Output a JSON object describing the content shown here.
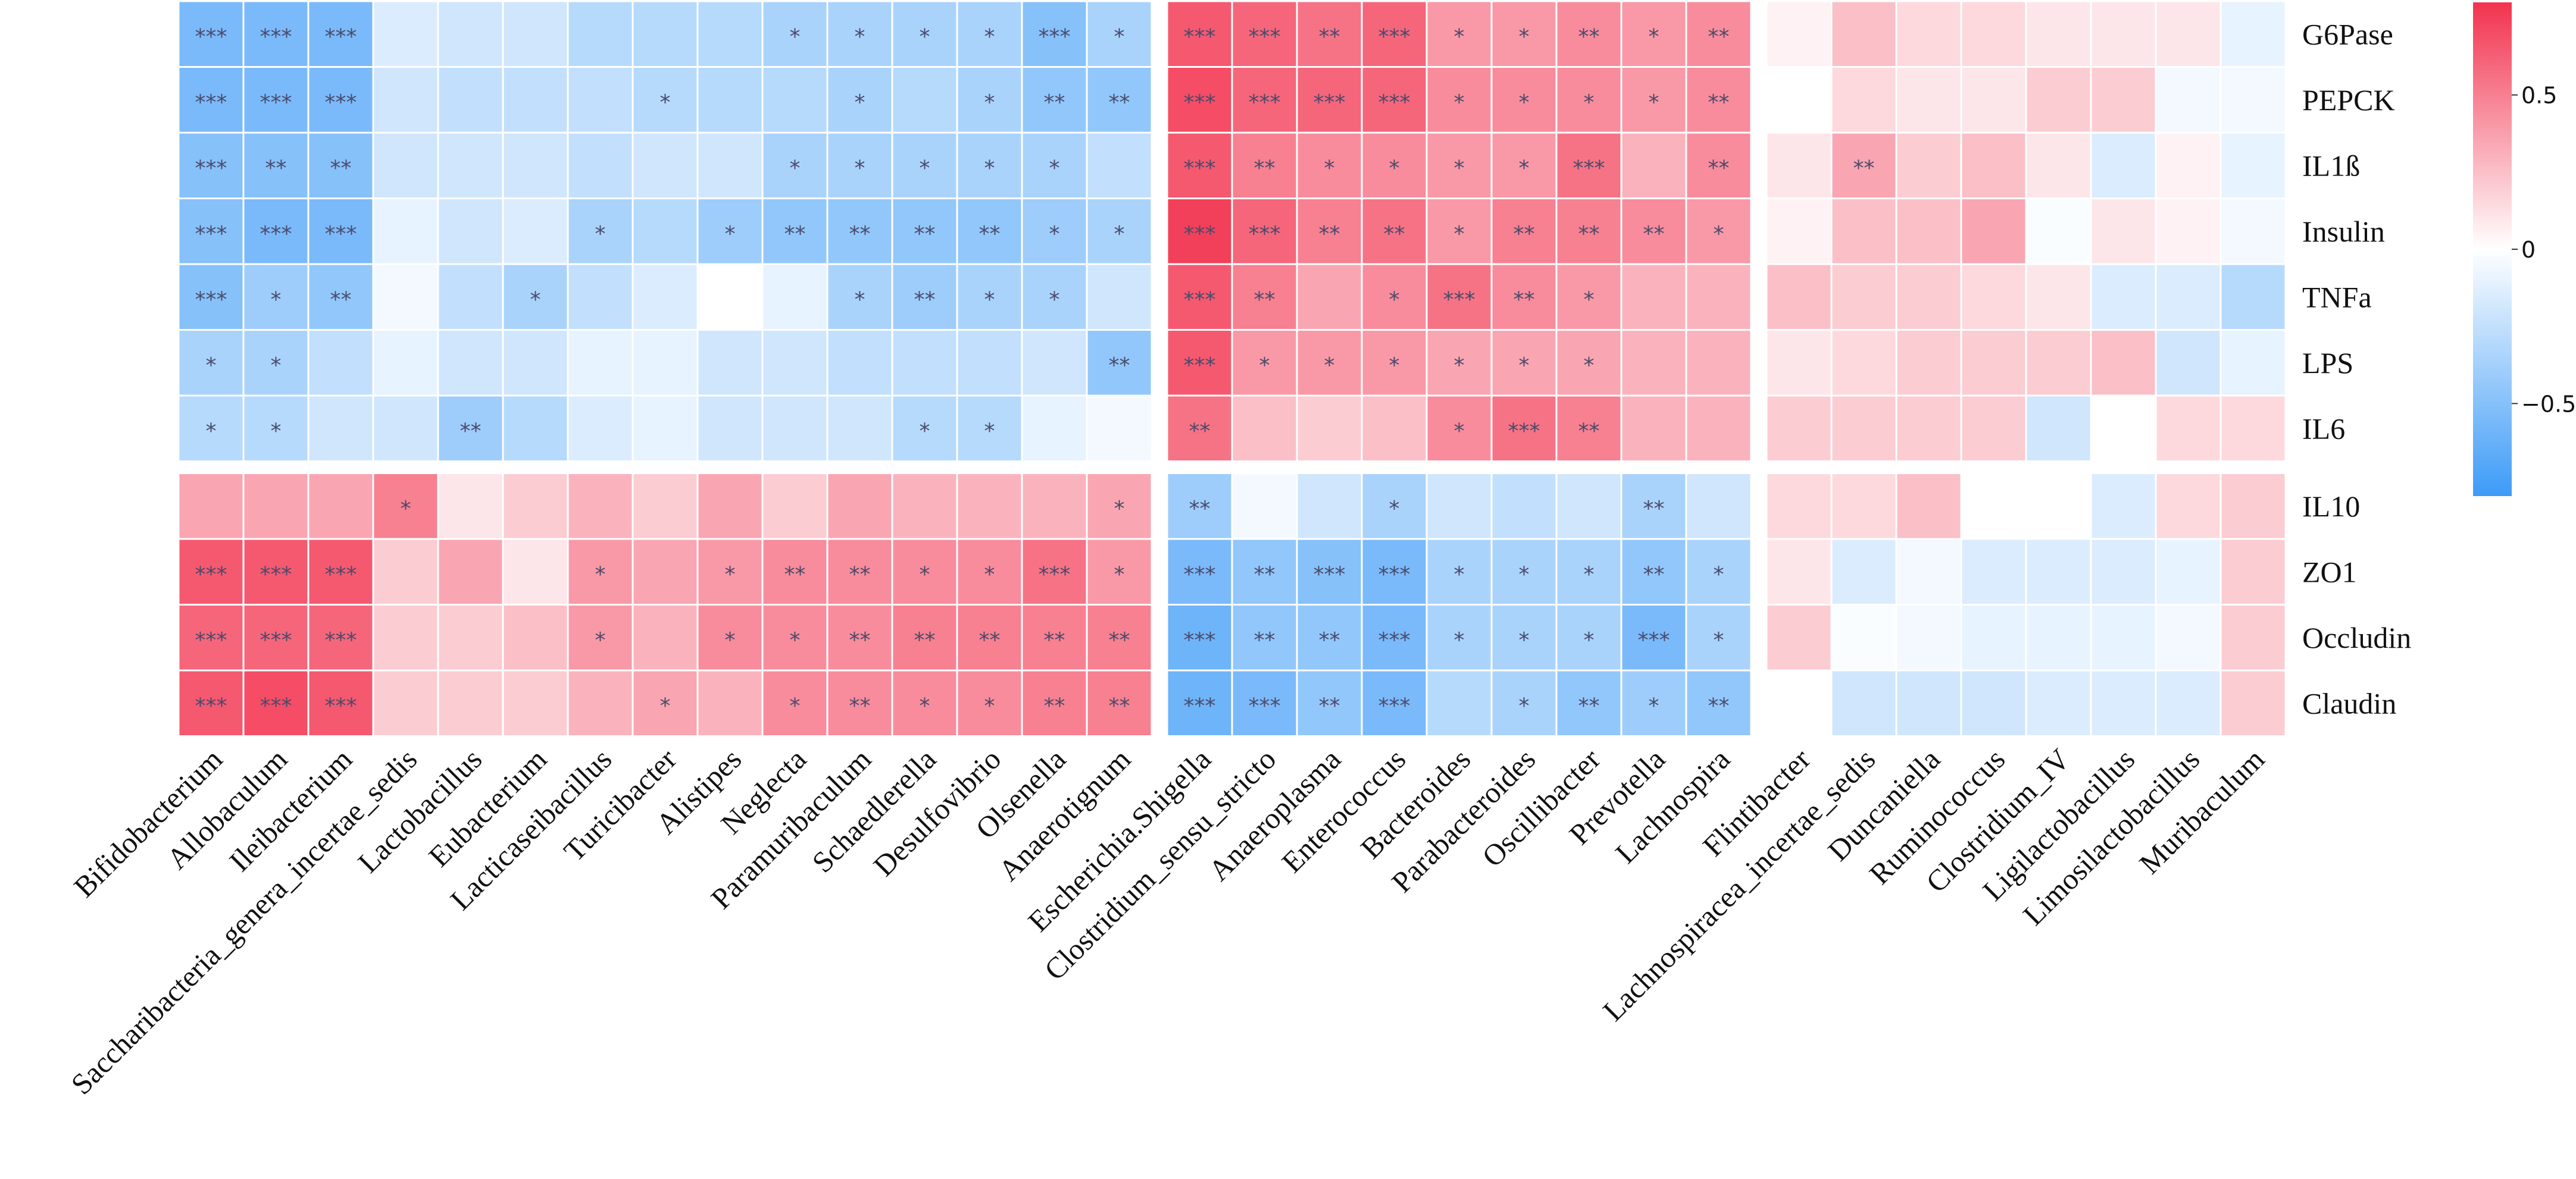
{
  "chart_data": {
    "type": "heatmap",
    "title": "",
    "columns": [
      "Bifidobacterium",
      "Allobaculum",
      "Ileibacterium",
      "Saccharibacteria_genera_incertae_sedis",
      "Lactobacillus",
      "Eubacterium",
      "Lacticaseibacillus",
      "Turicibacter",
      "Alistipes",
      "Neglecta",
      "Paramuribaculum",
      "Schaedlerella",
      "Desulfovibrio",
      "Olsenella",
      "Anaerotignum",
      "Escherichia.Shigella",
      "Clostridium_sensu_stricto",
      "Anaeroplasma",
      "Enterococcus",
      "Bacteroides",
      "Parabacteroides",
      "Oscillibacter",
      "Prevotella",
      "Lachnospira",
      "Flintibacter",
      "Lachnospiracea_incertae_sedis",
      "Duncaniella",
      "Ruminococcus",
      "Clostridium_IV",
      "Ligilactobacillus",
      "Limosilactobacillus",
      "Muribaculum"
    ],
    "column_groups": [
      15,
      9,
      8
    ],
    "rows": [
      "G6Pase",
      "PEPCK",
      "IL1ß",
      "Insulin",
      "TNFa",
      "LPS",
      "IL6",
      "IL10",
      "ZO1",
      "Occludin",
      "Claudin"
    ],
    "row_groups": [
      7,
      4
    ],
    "values": [
      [
        -0.55,
        -0.55,
        -0.55,
        -0.15,
        -0.2,
        -0.2,
        -0.3,
        -0.3,
        -0.3,
        -0.35,
        -0.35,
        -0.35,
        -0.35,
        -0.5,
        -0.35,
        0.65,
        0.6,
        0.55,
        0.6,
        0.4,
        0.4,
        0.45,
        0.4,
        0.45,
        0.05,
        0.25,
        0.15,
        0.15,
        0.1,
        0.1,
        0.1,
        -0.1
      ],
      [
        -0.55,
        -0.55,
        -0.55,
        -0.2,
        -0.25,
        -0.25,
        -0.25,
        -0.3,
        -0.3,
        -0.3,
        -0.35,
        -0.3,
        -0.35,
        -0.45,
        -0.45,
        0.7,
        0.6,
        0.6,
        0.6,
        0.45,
        0.45,
        0.45,
        0.4,
        0.45,
        0.0,
        0.15,
        0.1,
        0.1,
        0.2,
        0.2,
        -0.05,
        -0.05
      ],
      [
        -0.5,
        -0.5,
        -0.5,
        -0.2,
        -0.2,
        -0.2,
        -0.25,
        -0.2,
        -0.2,
        -0.35,
        -0.35,
        -0.35,
        -0.35,
        -0.35,
        -0.25,
        0.65,
        0.5,
        0.45,
        0.45,
        0.4,
        0.4,
        0.55,
        0.3,
        0.45,
        0.1,
        0.35,
        0.2,
        0.25,
        0.1,
        -0.15,
        0.05,
        -0.1
      ],
      [
        -0.5,
        -0.55,
        -0.55,
        -0.1,
        -0.2,
        -0.15,
        -0.35,
        -0.3,
        -0.4,
        -0.45,
        -0.45,
        -0.45,
        -0.45,
        -0.4,
        -0.35,
        0.75,
        0.6,
        0.5,
        0.55,
        0.4,
        0.5,
        0.5,
        0.45,
        0.4,
        0.05,
        0.25,
        0.25,
        0.35,
        -0.02,
        0.1,
        0.05,
        -0.05
      ],
      [
        -0.5,
        -0.4,
        -0.45,
        -0.05,
        -0.25,
        -0.35,
        -0.25,
        -0.15,
        0.0,
        -0.1,
        -0.35,
        -0.4,
        -0.35,
        -0.35,
        -0.2,
        0.65,
        0.5,
        0.35,
        0.45,
        0.55,
        0.45,
        0.4,
        0.3,
        0.3,
        0.25,
        0.2,
        0.2,
        0.15,
        0.1,
        -0.15,
        -0.15,
        -0.3
      ],
      [
        -0.35,
        -0.35,
        -0.25,
        -0.1,
        -0.2,
        -0.2,
        -0.1,
        -0.1,
        -0.2,
        -0.2,
        -0.25,
        -0.25,
        -0.25,
        -0.2,
        -0.45,
        0.65,
        0.4,
        0.4,
        0.4,
        0.35,
        0.35,
        0.35,
        0.3,
        0.3,
        0.1,
        0.15,
        0.2,
        0.2,
        0.2,
        0.25,
        -0.2,
        -0.1
      ],
      [
        -0.3,
        -0.3,
        -0.2,
        -0.2,
        -0.4,
        -0.3,
        -0.15,
        -0.1,
        -0.2,
        -0.2,
        -0.2,
        -0.3,
        -0.3,
        -0.1,
        -0.05,
        0.55,
        0.25,
        0.2,
        0.25,
        0.45,
        0.55,
        0.5,
        0.3,
        0.3,
        0.2,
        0.2,
        0.2,
        0.2,
        -0.2,
        0.0,
        0.15,
        0.15
      ],
      [
        0.35,
        0.35,
        0.35,
        0.5,
        0.1,
        0.2,
        0.3,
        0.2,
        0.35,
        0.2,
        0.35,
        0.3,
        0.3,
        0.3,
        0.35,
        -0.4,
        -0.05,
        -0.2,
        -0.35,
        -0.2,
        -0.25,
        -0.2,
        -0.35,
        -0.2,
        0.15,
        0.15,
        0.25,
        0.0,
        0.0,
        -0.15,
        0.15,
        0.2
      ],
      [
        0.65,
        0.65,
        0.65,
        0.2,
        0.35,
        0.1,
        0.4,
        0.35,
        0.4,
        0.45,
        0.45,
        0.45,
        0.45,
        0.55,
        0.4,
        -0.55,
        -0.45,
        -0.5,
        -0.55,
        -0.35,
        -0.35,
        -0.35,
        -0.45,
        -0.35,
        0.1,
        -0.15,
        -0.05,
        -0.15,
        -0.15,
        -0.15,
        -0.1,
        0.2
      ],
      [
        0.6,
        0.6,
        0.6,
        0.2,
        0.2,
        0.25,
        0.4,
        0.3,
        0.45,
        0.45,
        0.45,
        0.5,
        0.5,
        0.5,
        0.5,
        -0.6,
        -0.45,
        -0.45,
        -0.55,
        -0.35,
        -0.35,
        -0.35,
        -0.55,
        -0.35,
        0.2,
        -0.02,
        -0.05,
        -0.1,
        -0.1,
        -0.1,
        -0.05,
        0.2
      ],
      [
        0.65,
        0.7,
        0.65,
        0.2,
        0.2,
        0.2,
        0.3,
        0.35,
        0.3,
        0.45,
        0.45,
        0.45,
        0.45,
        0.5,
        0.5,
        -0.6,
        -0.55,
        -0.45,
        -0.55,
        -0.3,
        -0.35,
        -0.45,
        -0.4,
        -0.45,
        0.0,
        -0.2,
        -0.2,
        -0.2,
        -0.15,
        -0.15,
        -0.15,
        0.2
      ]
    ],
    "significance": [
      [
        "***",
        "***",
        "***",
        "",
        "",
        "",
        "",
        "",
        "",
        "*",
        "*",
        "*",
        "*",
        "***",
        "*",
        "***",
        "***",
        "**",
        "***",
        "*",
        "*",
        "**",
        "*",
        "**",
        "",
        "",
        "",
        "",
        "",
        "",
        "",
        ""
      ],
      [
        "***",
        "***",
        "***",
        "",
        "",
        "",
        "",
        "*",
        "",
        "",
        "*",
        "",
        "*",
        "**",
        "**",
        "***",
        "***",
        "***",
        "***",
        "*",
        "*",
        "*",
        "*",
        "**",
        "",
        "",
        "",
        "",
        "",
        "",
        "",
        ""
      ],
      [
        "***",
        "**",
        "**",
        "",
        "",
        "",
        "",
        "",
        "",
        "*",
        "*",
        "*",
        "*",
        "*",
        "",
        "***",
        "**",
        "*",
        "*",
        "*",
        "*",
        "***",
        "",
        "**",
        "",
        "**",
        "",
        "",
        "",
        "",
        "",
        ""
      ],
      [
        "***",
        "***",
        "***",
        "",
        "",
        "",
        "*",
        "",
        "*",
        "**",
        "**",
        "**",
        "**",
        "*",
        "*",
        "***",
        "***",
        "**",
        "**",
        "*",
        "**",
        "**",
        "**",
        "*",
        "",
        "",
        "",
        "",
        "",
        "",
        "",
        ""
      ],
      [
        "***",
        "*",
        "**",
        "",
        "",
        "*",
        "",
        "",
        "",
        "",
        "*",
        "**",
        "*",
        "*",
        "",
        "***",
        "**",
        "",
        "*",
        "***",
        "**",
        "*",
        "",
        "",
        "",
        "",
        "",
        "",
        "",
        "",
        "",
        ""
      ],
      [
        "*",
        "*",
        "",
        "",
        "",
        "",
        "",
        "",
        "",
        "",
        "",
        "",
        "",
        "",
        "**",
        "***",
        "*",
        "*",
        "*",
        "*",
        "*",
        "*",
        "",
        "",
        "",
        "",
        "",
        "",
        "",
        "",
        "",
        ""
      ],
      [
        "*",
        "*",
        "",
        "",
        "**",
        "",
        "",
        "",
        "",
        "",
        "",
        "*",
        "*",
        "",
        "",
        "**",
        "",
        "",
        "",
        "*",
        "***",
        "**",
        "",
        "",
        "",
        "",
        "",
        "",
        "",
        "",
        "",
        ""
      ],
      [
        "",
        "",
        "",
        "*",
        "",
        "",
        "",
        "",
        "",
        "",
        "",
        "",
        "",
        "",
        "*",
        "**",
        "",
        "",
        "*",
        "",
        "",
        "",
        "**",
        "",
        "",
        "",
        "",
        "",
        "",
        "",
        "",
        ""
      ],
      [
        "***",
        "***",
        "***",
        "",
        "",
        "",
        "*",
        "",
        "*",
        "**",
        "**",
        "*",
        "*",
        "***",
        "*",
        "***",
        "**",
        "***",
        "***",
        "*",
        "*",
        "*",
        "**",
        "*",
        "",
        "",
        "",
        "",
        "",
        "",
        "",
        ""
      ],
      [
        "***",
        "***",
        "***",
        "",
        "",
        "",
        "*",
        "",
        "*",
        "*",
        "**",
        "**",
        "**",
        "**",
        "**",
        "***",
        "**",
        "**",
        "***",
        "*",
        "*",
        "*",
        "***",
        "*",
        "",
        "",
        "",
        "",
        "",
        "",
        "",
        ""
      ],
      [
        "***",
        "***",
        "***",
        "",
        "",
        "",
        "",
        "*",
        "",
        "*",
        "**",
        "*",
        "*",
        "**",
        "**",
        "***",
        "***",
        "**",
        "***",
        "",
        "*",
        "**",
        "*",
        "**",
        "",
        "",
        "",
        "",
        "",
        "",
        "",
        ""
      ]
    ],
    "colorbar": {
      "ticks": [
        0.5,
        0,
        -0.5
      ],
      "tick_labels": [
        "0.5",
        "0",
        "−0.5"
      ],
      "range": [
        -0.8,
        0.8
      ]
    },
    "colors": {
      "low": "#3d9bf7",
      "mid": "#ffffff",
      "high": "#f2334f"
    }
  }
}
